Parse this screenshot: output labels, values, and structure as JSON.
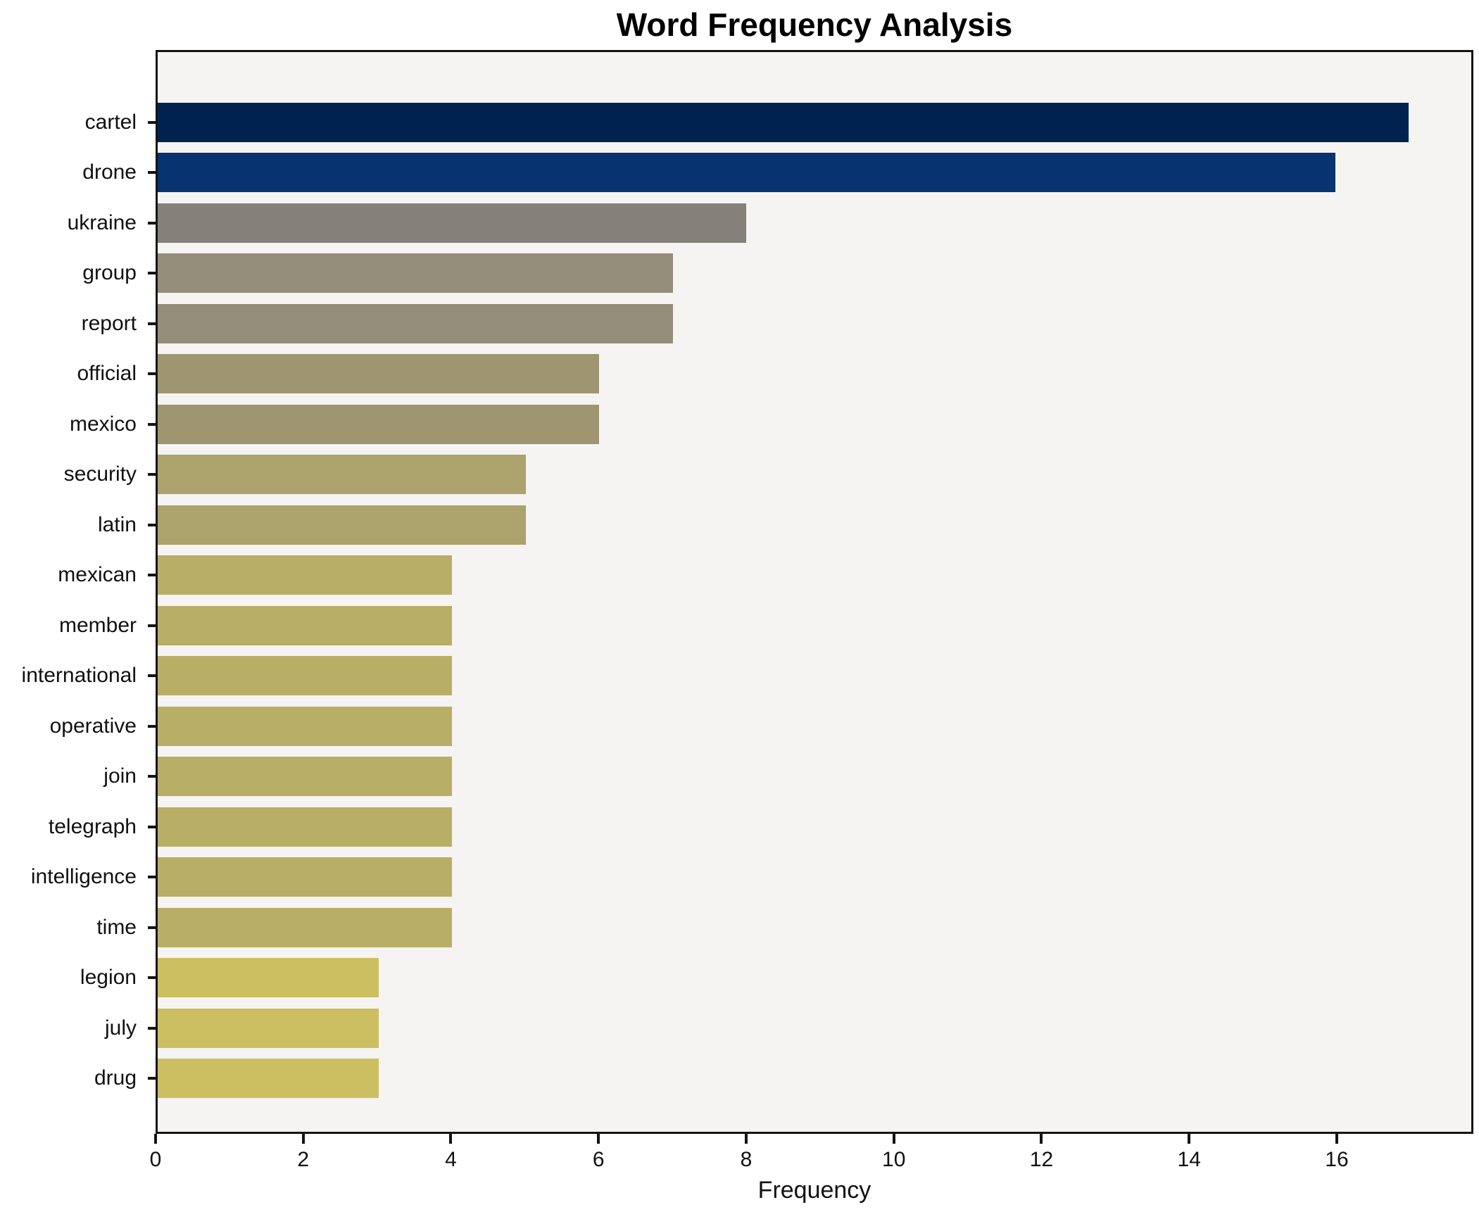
{
  "chart_data": {
    "type": "bar",
    "orientation": "horizontal",
    "title": "Word Frequency Analysis",
    "xlabel": "Frequency",
    "ylabel": "",
    "xlim": [
      0,
      17.85
    ],
    "x_ticks": [
      0,
      2,
      4,
      6,
      8,
      10,
      12,
      14,
      16
    ],
    "grid": false,
    "legend": null,
    "plot_background": "#f5f4f2",
    "outer_background": "#ffffff",
    "axis_color": "#141414",
    "categories": [
      "cartel",
      "drone",
      "ukraine",
      "group",
      "report",
      "official",
      "mexico",
      "security",
      "latin",
      "mexican",
      "member",
      "international",
      "operative",
      "join",
      "telegraph",
      "intelligence",
      "time",
      "legion",
      "july",
      "drug"
    ],
    "values": [
      17,
      16,
      8,
      7,
      7,
      6,
      6,
      5,
      5,
      4,
      4,
      4,
      4,
      4,
      4,
      4,
      4,
      3,
      3,
      3
    ],
    "bar_colors": [
      "#00224e",
      "#073370",
      "#84807a",
      "#948d7a",
      "#948d7a",
      "#9e9671",
      "#9e9671",
      "#aba26c",
      "#aba26c",
      "#b9ae66",
      "#b9ae66",
      "#b9ae66",
      "#b9ae66",
      "#b9ae66",
      "#b9ae66",
      "#b9ae66",
      "#b9ae66",
      "#ccbf61",
      "#ccbf61",
      "#ccbf61"
    ]
  }
}
